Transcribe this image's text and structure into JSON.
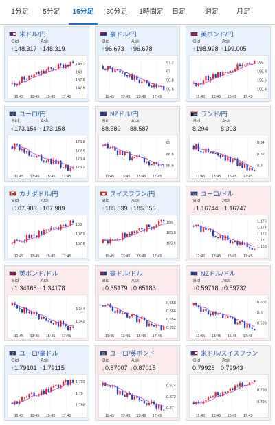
{
  "tabs": [
    {
      "label": "1分足",
      "active": false
    },
    {
      "label": "5分足",
      "active": false
    },
    {
      "label": "15分足",
      "active": true
    },
    {
      "label": "30分足",
      "active": false
    },
    {
      "label": "1時間足",
      "active": false
    },
    {
      "label": "日足",
      "active": false
    },
    {
      "label": "週足",
      "active": false
    },
    {
      "label": "月足",
      "active": false
    }
  ],
  "labels": {
    "bid": "Bid",
    "ask": "Ask"
  },
  "colors": {
    "up_candle": "#e0262e",
    "down_candle": "#1c3ec0",
    "ma": "#c040c0",
    "up_arrow": "#1a9a4a",
    "down_arrow": "#d43a3a",
    "pair_text": "#1a56b8",
    "active_tab": "#1a6fd6"
  },
  "cards": [
    {
      "pair": "米ドル/円",
      "flag": "us",
      "dir": "up",
      "bid": "148.317",
      "ask": "148.319",
      "x_ticks": [
        "11:45",
        "13:45",
        "15:45",
        "17:45"
      ],
      "y_ticks": [
        "148.2",
        "148",
        "147.8",
        "147.6"
      ],
      "ylim": [
        147.5,
        148.3
      ],
      "trend": "up"
    },
    {
      "pair": "豪ドル/円",
      "flag": "au",
      "dir": "up",
      "bid": "96.673",
      "ask": "96.678",
      "x_ticks": [
        "11:45",
        "13:45",
        "15:45",
        "17:45"
      ],
      "y_ticks": [
        "97.2",
        "97",
        "96.8",
        "96.6"
      ],
      "ylim": [
        96.55,
        97.25
      ],
      "trend": "down"
    },
    {
      "pair": "英ポンド/円",
      "flag": "gb",
      "dir": "up",
      "bid": "198.998",
      "ask": "199.005",
      "x_ticks": [
        "11:45",
        "13:45",
        "15:45",
        "17:45"
      ],
      "y_ticks": [
        "199",
        "198.8",
        "198.6",
        "198.4"
      ],
      "ylim": [
        198.35,
        199.05
      ],
      "trend": "up"
    },
    {
      "pair": "ユーロ/円",
      "flag": "eu",
      "dir": "up",
      "bid": "173.154",
      "ask": "173.158",
      "x_ticks": [
        "11:45",
        "13:45",
        "15:45",
        "17:45"
      ],
      "y_ticks": [
        "173.8",
        "173.6",
        "173.4",
        "173.2"
      ],
      "ylim": [
        173.1,
        173.85
      ],
      "trend": "down"
    },
    {
      "pair": "NZドル/円",
      "flag": "nz",
      "dir": "flat",
      "bid": "88.580",
      "ask": "88.587",
      "x_ticks": [
        "11:45",
        "13:45",
        "15:45",
        "17:45"
      ],
      "y_ticks": [
        "89",
        "88.8",
        "88.6"
      ],
      "ylim": [
        88.5,
        89.05
      ],
      "trend": "down"
    },
    {
      "pair": "ランド/円",
      "flag": "za",
      "dir": "flat",
      "bid": "8.294",
      "ask": "8.303",
      "x_ticks": [
        "11:45",
        "13:45",
        "15:45",
        "17:45"
      ],
      "y_ticks": [
        "8.34",
        "8.32",
        "8.3"
      ],
      "ylim": [
        8.29,
        8.345
      ],
      "trend": "down"
    },
    {
      "pair": "カナダドル/円",
      "flag": "ca",
      "dir": "up",
      "bid": "107.983",
      "ask": "107.989",
      "x_ticks": [
        "11:45",
        "13:45",
        "15:45",
        "17:45"
      ],
      "y_ticks": [
        "108",
        "107.9",
        "107.8"
      ],
      "ylim": [
        107.72,
        108.05
      ],
      "trend": "up"
    },
    {
      "pair": "スイスフラン/円",
      "flag": "ch",
      "dir": "up",
      "bid": "185.539",
      "ask": "185.555",
      "x_ticks": [
        "11:45",
        "13:45",
        "15:45",
        "17:45"
      ],
      "y_ticks": [
        "186",
        "185.8",
        "185.6"
      ],
      "ylim": [
        185.45,
        186.05
      ],
      "trend": "up"
    },
    {
      "pair": "ユーロ/ドル",
      "flag": "eu",
      "dir": "down",
      "bid": "1.16744",
      "ask": "1.16747",
      "x_ticks": [
        "11:45",
        "13:45",
        "15:45",
        "17:45"
      ],
      "y_ticks": [
        "1.176",
        "1.174",
        "1.172",
        "1.17",
        "1.168"
      ],
      "ylim": [
        1.1665,
        1.1765
      ],
      "trend": "down"
    },
    {
      "pair": "英ポンド/ドル",
      "flag": "gb",
      "dir": "down",
      "bid": "1.34168",
      "ask": "1.34178",
      "x_ticks": [
        "11:45",
        "13:45",
        "15:45",
        "17:45"
      ],
      "y_ticks": [
        "1.344",
        "1.342"
      ],
      "ylim": [
        1.3405,
        1.3455
      ],
      "trend": "down"
    },
    {
      "pair": "豪ドル/ドル",
      "flag": "au",
      "dir": "down",
      "bid": "0.65179",
      "ask": "0.65183",
      "x_ticks": [
        "11:45",
        "13:45",
        "15:45",
        "17:45"
      ],
      "y_ticks": [
        "0.658",
        "0.656",
        "0.654",
        "0.652"
      ],
      "ylim": [
        0.6512,
        0.6588
      ],
      "trend": "down"
    },
    {
      "pair": "NZドル/ドル",
      "flag": "nz",
      "dir": "down",
      "bid": "0.59718",
      "ask": "0.59732",
      "x_ticks": [
        "11:45",
        "13:45",
        "15:45",
        "17:45"
      ],
      "y_ticks": [
        "0.602",
        "0.6",
        "0.598"
      ],
      "ylim": [
        0.5965,
        0.6025
      ],
      "trend": "down"
    },
    {
      "pair": "ユーロ/豪ドル",
      "flag": "eu",
      "dir": "up",
      "bid": "1.79101",
      "ask": "1.79115",
      "x_ticks": [
        "11:45",
        "13:45",
        "15:45",
        "17:45"
      ],
      "y_ticks": [
        "1.792",
        "1.79",
        "1.788"
      ],
      "ylim": [
        1.787,
        1.7925
      ],
      "trend": "up"
    },
    {
      "pair": "ユーロ/英ポンド",
      "flag": "eu",
      "dir": "down",
      "bid": "0.87007",
      "ask": "0.87015",
      "x_ticks": [
        "11:45",
        "13:45",
        "15:45",
        "17:45"
      ],
      "y_ticks": [
        "0.874",
        "0.872",
        "0.87"
      ],
      "ylim": [
        0.8695,
        0.8752
      ],
      "trend": "down"
    },
    {
      "pair": "米ドル/スイスフラン",
      "flag": "us",
      "dir": "flat",
      "bid": "0.79928",
      "ask": "0.79943",
      "x_ticks": [
        "11:45",
        "13:45",
        "15:45",
        "17:45"
      ],
      "y_ticks": [
        "0.798",
        "0.796"
      ],
      "ylim": [
        0.7945,
        0.7998
      ],
      "trend": "up"
    }
  ]
}
